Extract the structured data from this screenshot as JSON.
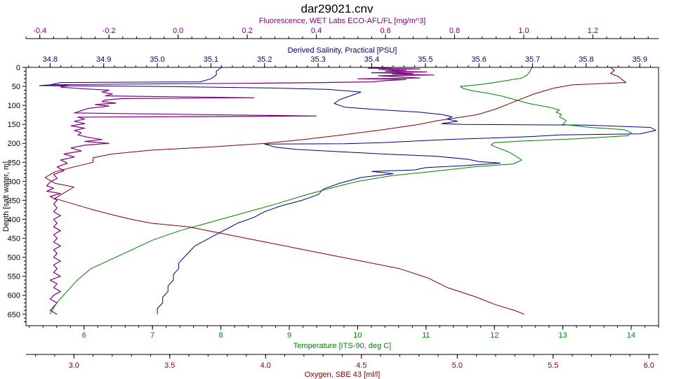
{
  "chart_data": {
    "type": "line",
    "title": "dar29021.cnv",
    "grid": false,
    "legend": "none",
    "y_axis": {
      "label": "Depth [salt water, m]",
      "range": [
        0,
        680
      ],
      "inverted": true,
      "ticks": [
        0,
        50,
        100,
        150,
        200,
        250,
        300,
        350,
        400,
        450,
        500,
        550,
        600,
        650
      ],
      "color": "#000000"
    },
    "x_axes": [
      {
        "id": "fluorescence",
        "label": "Fluorescence, WET Labs ECO-AFL/FL [mg/m^3]",
        "position": "top-outer",
        "color": "#800080",
        "range": [
          -0.44,
          1.39
        ],
        "ticks": [
          -0.4,
          -0.2,
          0.0,
          0.2,
          0.4,
          0.6,
          0.8,
          1.0,
          1.2
        ],
        "tick_labels": [
          "-0.4",
          "-0.2",
          "0.0",
          "0.2",
          "0.4",
          "0.6",
          "0.8",
          "1.0",
          "1.2"
        ]
      },
      {
        "id": "salinity",
        "label": "Derived Salinity, Practical [PSU]",
        "position": "top-inner",
        "color": "#000080",
        "range": [
          34.755,
          35.935
        ],
        "ticks": [
          34.8,
          34.9,
          35.0,
          35.1,
          35.2,
          35.3,
          35.4,
          35.5,
          35.6,
          35.7,
          35.8,
          35.9
        ],
        "tick_labels": [
          "34.8",
          "34.9",
          "35.0",
          "35.1",
          "35.2",
          "35.3",
          "35.4",
          "35.5",
          "35.6",
          "35.7",
          "35.8",
          "35.9"
        ]
      },
      {
        "id": "temperature",
        "label": "Temperature [ITS-90, deg C]",
        "position": "bottom-inner",
        "color": "#008000",
        "range": [
          5.15,
          14.4
        ],
        "ticks": [
          6,
          7,
          8,
          9,
          10,
          11,
          12,
          13,
          14
        ],
        "tick_labels": [
          "6",
          "7",
          "8",
          "9",
          "10",
          "11",
          "12",
          "13",
          "14"
        ]
      },
      {
        "id": "oxygen",
        "label": "Oxygen, SBE 43 [ml/l]",
        "position": "bottom-outer",
        "color": "#800000",
        "range": [
          2.75,
          6.05
        ],
        "ticks": [
          3.0,
          3.5,
          4.0,
          4.5,
          5.0,
          5.5,
          6.0
        ],
        "tick_labels": [
          "3.0",
          "3.5",
          "4.0",
          "4.5",
          "5.0",
          "5.5",
          "6.0"
        ]
      }
    ],
    "series": [
      {
        "id": "fluorescence",
        "axis": "fluorescence",
        "color": "#800080",
        "points": [
          [
            0.62,
            0
          ],
          [
            0.55,
            2
          ],
          [
            0.7,
            4
          ],
          [
            0.58,
            6
          ],
          [
            0.66,
            8
          ],
          [
            0.6,
            10
          ],
          [
            0.72,
            12
          ],
          [
            0.56,
            14
          ],
          [
            0.68,
            16
          ],
          [
            0.62,
            18
          ],
          [
            0.74,
            20
          ],
          [
            0.58,
            22
          ],
          [
            0.64,
            25
          ],
          [
            0.7,
            28
          ],
          [
            0.52,
            30
          ],
          [
            0.66,
            32
          ],
          [
            0.6,
            35
          ],
          [
            0.56,
            38
          ],
          [
            0.42,
            40
          ],
          [
            0.2,
            42
          ],
          [
            -0.15,
            44
          ],
          [
            -0.37,
            46
          ],
          [
            -0.32,
            48
          ],
          [
            -0.34,
            52
          ],
          [
            -0.28,
            56
          ],
          [
            -0.2,
            60
          ],
          [
            -0.22,
            65
          ],
          [
            -0.19,
            70
          ],
          [
            -0.21,
            75
          ],
          [
            0.22,
            80
          ],
          [
            -0.16,
            82
          ],
          [
            -0.21,
            86
          ],
          [
            -0.22,
            90
          ],
          [
            -0.18,
            94
          ],
          [
            -0.24,
            98
          ],
          [
            -0.2,
            102
          ],
          [
            -0.26,
            108
          ],
          [
            -0.28,
            114
          ],
          [
            -0.3,
            120
          ],
          [
            0.4,
            128
          ],
          [
            -0.29,
            131
          ],
          [
            -0.27,
            136
          ],
          [
            -0.3,
            142
          ],
          [
            -0.27,
            148
          ],
          [
            -0.31,
            154
          ],
          [
            -0.27,
            160
          ],
          [
            -0.3,
            166
          ],
          [
            -0.28,
            172
          ],
          [
            -0.29,
            178
          ],
          [
            -0.26,
            184
          ],
          [
            -0.22,
            190
          ],
          [
            -0.27,
            195
          ],
          [
            -0.2,
            200
          ],
          [
            -0.27,
            205
          ],
          [
            -0.31,
            212
          ],
          [
            -0.28,
            220
          ],
          [
            -0.33,
            228
          ],
          [
            -0.3,
            236
          ],
          [
            -0.34,
            244
          ],
          [
            -0.32,
            252
          ],
          [
            -0.35,
            262
          ],
          [
            -0.33,
            272
          ],
          [
            -0.36,
            282
          ],
          [
            -0.35,
            292
          ],
          [
            -0.37,
            302
          ],
          [
            -0.38,
            312
          ],
          [
            -0.36,
            318
          ],
          [
            -0.38,
            326
          ],
          [
            -0.34,
            332
          ],
          [
            -0.37,
            340
          ],
          [
            -0.35,
            350
          ],
          [
            -0.36,
            360
          ],
          [
            -0.35,
            370
          ],
          [
            -0.36,
            380
          ],
          [
            -0.34,
            390
          ],
          [
            -0.36,
            400
          ],
          [
            -0.35,
            410
          ],
          [
            -0.36,
            420
          ],
          [
            -0.34,
            430
          ],
          [
            -0.36,
            440
          ],
          [
            -0.35,
            450
          ],
          [
            -0.36,
            460
          ],
          [
            -0.34,
            470
          ],
          [
            -0.36,
            480
          ],
          [
            -0.35,
            490
          ],
          [
            -0.36,
            500
          ],
          [
            -0.34,
            510
          ],
          [
            -0.36,
            520
          ],
          [
            -0.35,
            530
          ],
          [
            -0.36,
            540
          ],
          [
            -0.34,
            550
          ],
          [
            -0.37,
            560
          ],
          [
            -0.35,
            570
          ],
          [
            -0.36,
            580
          ],
          [
            -0.34,
            590
          ],
          [
            -0.36,
            600
          ],
          [
            -0.37,
            610
          ],
          [
            -0.35,
            620
          ],
          [
            -0.36,
            630
          ],
          [
            -0.37,
            640
          ],
          [
            -0.35,
            650
          ]
        ]
      },
      {
        "id": "salinity",
        "axis": "salinity",
        "color": "#000080",
        "points": [
          [
            35.12,
            0
          ],
          [
            35.11,
            10
          ],
          [
            35.11,
            20
          ],
          [
            35.1,
            30
          ],
          [
            35.08,
            38
          ],
          [
            34.82,
            40
          ],
          [
            34.8,
            46
          ],
          [
            34.78,
            48
          ],
          [
            35.0,
            50
          ],
          [
            35.2,
            54
          ],
          [
            35.32,
            58
          ],
          [
            35.38,
            65
          ],
          [
            35.36,
            75
          ],
          [
            35.34,
            85
          ],
          [
            35.33,
            95
          ],
          [
            35.35,
            105
          ],
          [
            35.42,
            112
          ],
          [
            35.49,
            118
          ],
          [
            35.53,
            124
          ],
          [
            35.55,
            130
          ],
          [
            35.54,
            136
          ],
          [
            35.56,
            142
          ],
          [
            35.53,
            148
          ],
          [
            35.57,
            150
          ],
          [
            35.8,
            152
          ],
          [
            35.92,
            158
          ],
          [
            35.93,
            166
          ],
          [
            35.9,
            175
          ],
          [
            35.75,
            178
          ],
          [
            35.7,
            182
          ],
          [
            35.62,
            186
          ],
          [
            35.54,
            190
          ],
          [
            35.48,
            194
          ],
          [
            35.42,
            198
          ],
          [
            35.35,
            201
          ],
          [
            35.2,
            202
          ],
          [
            35.22,
            210
          ],
          [
            35.26,
            216
          ],
          [
            35.34,
            222
          ],
          [
            35.42,
            228
          ],
          [
            35.52,
            234
          ],
          [
            35.58,
            242
          ],
          [
            35.6,
            248
          ],
          [
            35.64,
            252
          ],
          [
            35.58,
            258
          ],
          [
            35.5,
            264
          ],
          [
            35.48,
            270
          ],
          [
            35.4,
            274
          ],
          [
            35.44,
            280
          ],
          [
            35.38,
            290
          ],
          [
            35.34,
            305
          ],
          [
            35.31,
            320
          ],
          [
            35.3,
            335
          ],
          [
            35.27,
            350
          ],
          [
            35.23,
            365
          ],
          [
            35.2,
            380
          ],
          [
            35.18,
            395
          ],
          [
            35.15,
            410
          ],
          [
            35.13,
            425
          ],
          [
            35.11,
            440
          ],
          [
            35.09,
            455
          ],
          [
            35.07,
            470
          ],
          [
            35.06,
            485
          ],
          [
            35.05,
            500
          ],
          [
            35.04,
            515
          ],
          [
            35.04,
            530
          ],
          [
            35.03,
            545
          ],
          [
            35.03,
            560
          ],
          [
            35.02,
            575
          ],
          [
            35.02,
            590
          ],
          [
            35.01,
            605
          ],
          [
            35.01,
            620
          ],
          [
            35.0,
            635
          ],
          [
            35.0,
            650
          ]
        ]
      },
      {
        "id": "temperature",
        "axis": "temperature",
        "color": "#008000",
        "points": [
          [
            12.55,
            0
          ],
          [
            12.52,
            10
          ],
          [
            12.48,
            20
          ],
          [
            12.4,
            28
          ],
          [
            12.2,
            34
          ],
          [
            12.0,
            40
          ],
          [
            11.8,
            45
          ],
          [
            11.5,
            50
          ],
          [
            11.55,
            56
          ],
          [
            11.7,
            62
          ],
          [
            11.9,
            68
          ],
          [
            12.1,
            75
          ],
          [
            12.3,
            85
          ],
          [
            12.5,
            95
          ],
          [
            12.8,
            105
          ],
          [
            12.95,
            112
          ],
          [
            12.9,
            118
          ],
          [
            12.98,
            124
          ],
          [
            12.95,
            130
          ],
          [
            13.05,
            140
          ],
          [
            13.0,
            150
          ],
          [
            13.4,
            158
          ],
          [
            13.9,
            164
          ],
          [
            14.0,
            172
          ],
          [
            13.95,
            180
          ],
          [
            13.2,
            188
          ],
          [
            12.4,
            194
          ],
          [
            12.0,
            198
          ],
          [
            11.95,
            204
          ],
          [
            12.05,
            212
          ],
          [
            12.2,
            222
          ],
          [
            12.3,
            232
          ],
          [
            12.4,
            244
          ],
          [
            12.28,
            254
          ],
          [
            11.7,
            262
          ],
          [
            11.2,
            272
          ],
          [
            10.5,
            285
          ],
          [
            10.0,
            300
          ],
          [
            9.6,
            318
          ],
          [
            9.2,
            338
          ],
          [
            8.8,
            360
          ],
          [
            8.3,
            385
          ],
          [
            7.8,
            410
          ],
          [
            7.4,
            430
          ],
          [
            7.0,
            455
          ],
          [
            6.7,
            480
          ],
          [
            6.4,
            505
          ],
          [
            6.1,
            530
          ],
          [
            5.9,
            560
          ],
          [
            5.75,
            590
          ],
          [
            5.6,
            620
          ],
          [
            5.5,
            650
          ]
        ]
      },
      {
        "id": "oxygen",
        "axis": "oxygen",
        "color": "#800000",
        "points": [
          [
            5.8,
            0
          ],
          [
            5.82,
            8
          ],
          [
            5.8,
            16
          ],
          [
            5.84,
            24
          ],
          [
            5.86,
            32
          ],
          [
            5.88,
            40
          ],
          [
            5.6,
            46
          ],
          [
            5.5,
            55
          ],
          [
            5.4,
            70
          ],
          [
            5.3,
            90
          ],
          [
            5.2,
            110
          ],
          [
            5.1,
            125
          ],
          [
            4.9,
            140
          ],
          [
            4.8,
            150
          ],
          [
            4.6,
            165
          ],
          [
            4.4,
            178
          ],
          [
            4.2,
            190
          ],
          [
            4.0,
            200
          ],
          [
            3.7,
            210
          ],
          [
            3.4,
            218
          ],
          [
            3.2,
            228
          ],
          [
            3.1,
            238
          ],
          [
            3.1,
            250
          ],
          [
            3.0,
            262
          ],
          [
            2.9,
            275
          ],
          [
            2.85,
            290
          ],
          [
            2.9,
            305
          ],
          [
            3.0,
            315
          ],
          [
            2.95,
            330
          ],
          [
            2.9,
            345
          ],
          [
            3.0,
            360
          ],
          [
            3.1,
            375
          ],
          [
            3.2,
            388
          ],
          [
            3.3,
            400
          ],
          [
            3.4,
            410
          ],
          [
            3.6,
            420
          ],
          [
            3.7,
            430
          ],
          [
            3.8,
            440
          ],
          [
            3.95,
            455
          ],
          [
            4.1,
            470
          ],
          [
            4.3,
            490
          ],
          [
            4.5,
            510
          ],
          [
            4.7,
            530
          ],
          [
            4.85,
            555
          ],
          [
            4.95,
            580
          ],
          [
            5.1,
            605
          ],
          [
            5.2,
            625
          ],
          [
            5.3,
            640
          ],
          [
            5.35,
            650
          ]
        ]
      }
    ]
  }
}
